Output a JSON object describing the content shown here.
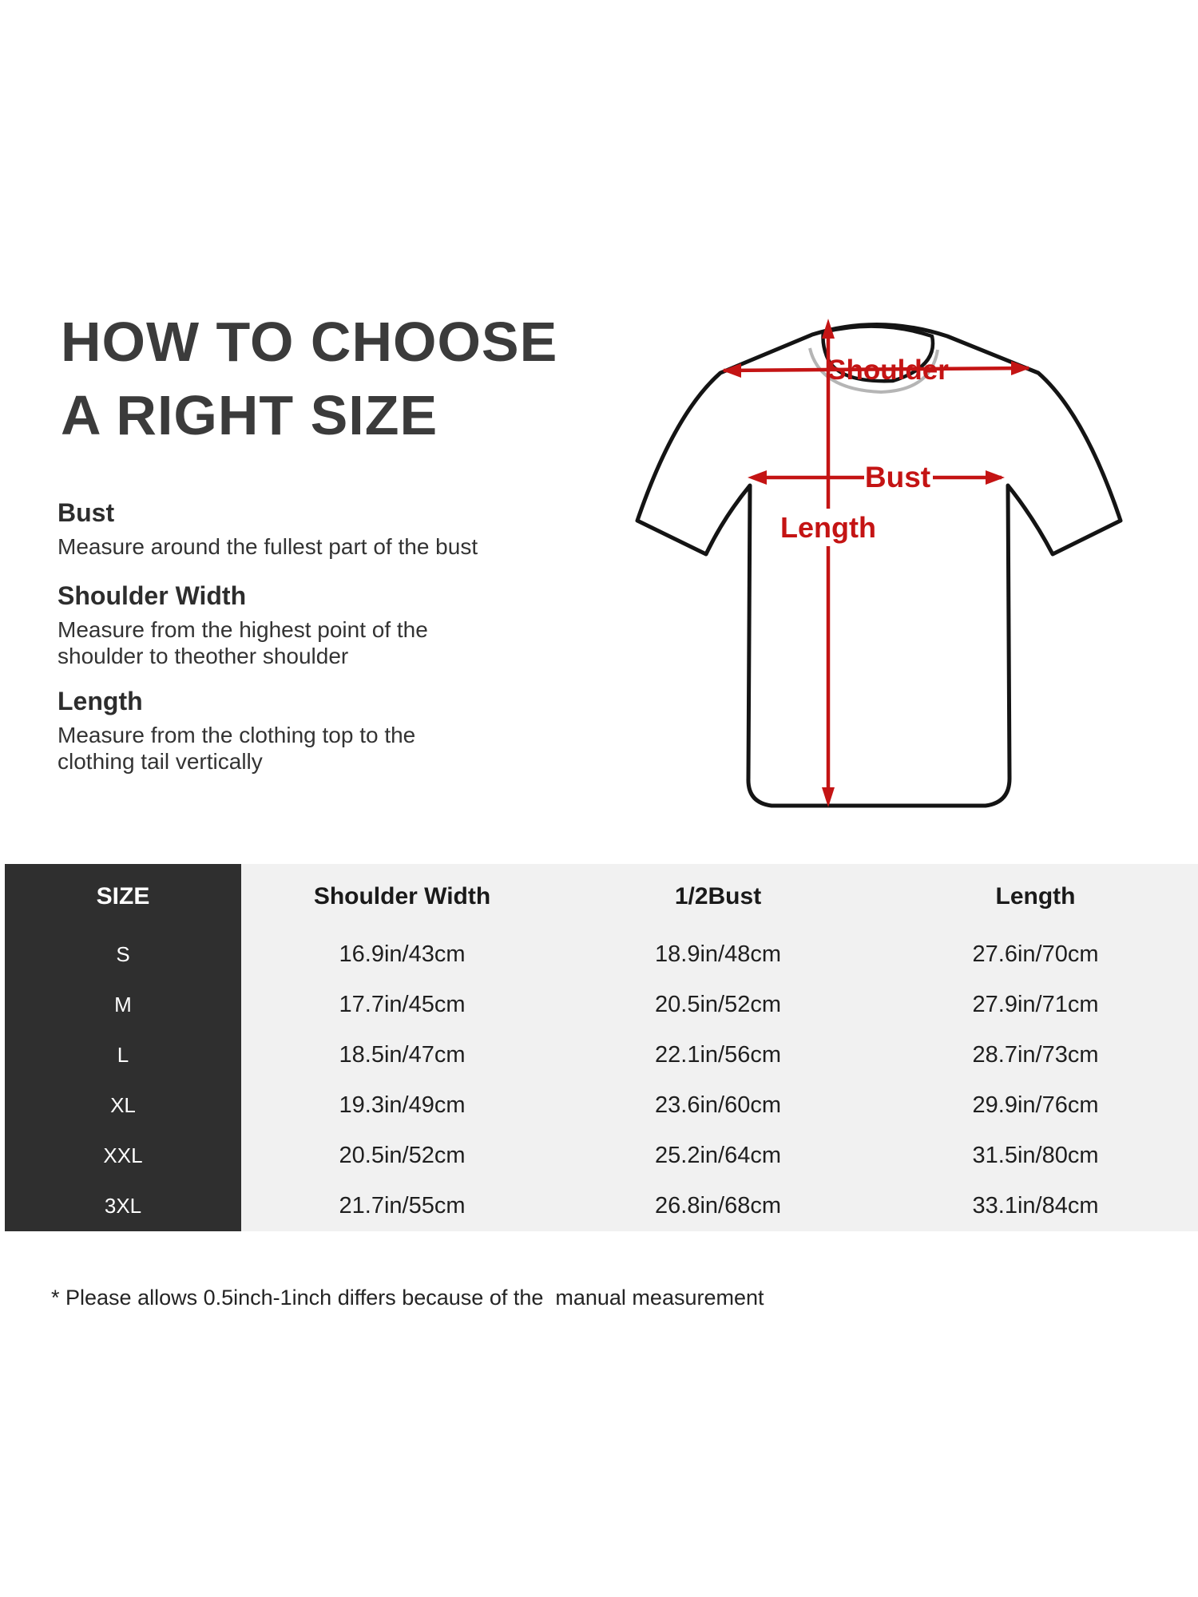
{
  "title": {
    "line1": "HOW TO CHOOSE",
    "line2": "A RIGHT SIZE"
  },
  "sections": [
    {
      "heading": "Bust",
      "body": "Measure around the fullest part of the bust"
    },
    {
      "heading": "Shoulder Width",
      "body": "Measure from the highest point of the\nshoulder to theother shoulder"
    },
    {
      "heading": "Length",
      "body": "Measure from the clothing top to the\nclothing tail vertically"
    }
  ],
  "diagram": {
    "labels": {
      "shoulder": "Shoulder",
      "bust": "Bust",
      "length": "Length"
    },
    "colors": {
      "annotation_red": "#c41414",
      "shirt_outline": "#141414",
      "collar_rim_gray": "#b5b5b5"
    }
  },
  "table": {
    "headers": [
      "SIZE",
      "Shoulder Width",
      "1/2Bust",
      "Length"
    ],
    "rows": [
      {
        "size": "S",
        "shoulder_width": "16.9in/43cm",
        "half_bust": "18.9in/48cm",
        "length": "27.6in/70cm"
      },
      {
        "size": "M",
        "shoulder_width": "17.7in/45cm",
        "half_bust": "20.5in/52cm",
        "length": "27.9in/71cm"
      },
      {
        "size": "L",
        "shoulder_width": "18.5in/47cm",
        "half_bust": "22.1in/56cm",
        "length": "28.7in/73cm"
      },
      {
        "size": "XL",
        "shoulder_width": "19.3in/49cm",
        "half_bust": "23.6in/60cm",
        "length": "29.9in/76cm"
      },
      {
        "size": "XXL",
        "shoulder_width": "20.5in/52cm",
        "half_bust": "25.2in/64cm",
        "length": "31.5in/80cm"
      },
      {
        "size": "3XL",
        "shoulder_width": "21.7in/55cm",
        "half_bust": "26.8in/68cm",
        "length": "33.1in/84cm"
      }
    ],
    "colors": {
      "size_column_bg": "#2f2f2f",
      "body_bg": "#f1f1f1",
      "size_text": "#ffffff",
      "value_text": "#1f1f1f"
    }
  },
  "footnote": "* Please allows 0.5inch-1inch differs because of the  manual measurement"
}
